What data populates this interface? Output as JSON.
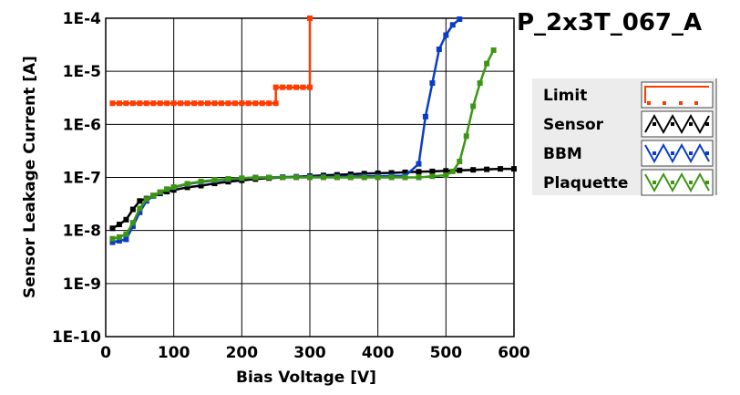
{
  "chart_data": {
    "type": "line",
    "title": "P_2x3T_067_A",
    "xlabel": "Bias Voltage [V]",
    "ylabel": "Sensor Leakage Current [A]",
    "xlim": [
      0,
      600
    ],
    "ylim": [
      1e-10,
      0.0001
    ],
    "yscale": "log",
    "grid": true,
    "legend_position": "right",
    "x_ticks": [
      0,
      100,
      200,
      300,
      400,
      500,
      600
    ],
    "x_tick_labels": [
      "0",
      "100",
      "200",
      "300",
      "400",
      "500",
      "600"
    ],
    "y_ticks": [
      0.0001,
      1e-05,
      1e-06,
      1e-07,
      1e-08,
      1e-09,
      1e-10
    ],
    "y_tick_labels": [
      "1E-4",
      "1E-5",
      "1E-6",
      "1E-7",
      "1E-8",
      "1E-9",
      "1E-10"
    ],
    "series": [
      {
        "name": "Limit",
        "color": "#ff3c00",
        "x": [
          10,
          20,
          30,
          40,
          50,
          60,
          70,
          80,
          90,
          100,
          110,
          120,
          130,
          140,
          150,
          160,
          170,
          180,
          190,
          200,
          210,
          220,
          230,
          240,
          250,
          250,
          260,
          270,
          280,
          290,
          300,
          300
        ],
        "y": [
          2.5e-06,
          2.5e-06,
          2.5e-06,
          2.5e-06,
          2.5e-06,
          2.5e-06,
          2.5e-06,
          2.5e-06,
          2.5e-06,
          2.5e-06,
          2.5e-06,
          2.5e-06,
          2.5e-06,
          2.5e-06,
          2.5e-06,
          2.5e-06,
          2.5e-06,
          2.5e-06,
          2.5e-06,
          2.5e-06,
          2.5e-06,
          2.5e-06,
          2.5e-06,
          2.5e-06,
          2.5e-06,
          5e-06,
          5e-06,
          5e-06,
          5e-06,
          5e-06,
          5e-06,
          0.0001
        ]
      },
      {
        "name": "Sensor",
        "color": "#000000",
        "x": [
          10,
          20,
          30,
          40,
          50,
          60,
          70,
          80,
          90,
          100,
          120,
          140,
          160,
          180,
          200,
          220,
          240,
          260,
          280,
          300,
          320,
          340,
          360,
          380,
          400,
          420,
          440,
          460,
          480,
          500,
          520,
          540,
          560,
          580,
          600
        ],
        "y": [
          1.1e-08,
          1.3e-08,
          1.6e-08,
          2.5e-08,
          3.6e-08,
          4e-08,
          4.5e-08,
          5e-08,
          5.4e-08,
          5.8e-08,
          6.5e-08,
          7e-08,
          7.7e-08,
          8.3e-08,
          8.8e-08,
          9.3e-08,
          9.7e-08,
          1e-07,
          1.03e-07,
          1.06e-07,
          1.09e-07,
          1.12e-07,
          1.15e-07,
          1.18e-07,
          1.2e-07,
          1.22e-07,
          1.25e-07,
          1.28e-07,
          1.3e-07,
          1.33e-07,
          1.36e-07,
          1.39e-07,
          1.42e-07,
          1.45e-07,
          1.45e-07
        ]
      },
      {
        "name": "BBM",
        "color": "#0a3cc8",
        "x": [
          10,
          20,
          30,
          40,
          50,
          60,
          70,
          80,
          90,
          100,
          120,
          140,
          160,
          180,
          200,
          220,
          240,
          260,
          280,
          300,
          320,
          340,
          360,
          380,
          400,
          420,
          440,
          460,
          470,
          480,
          490,
          500,
          510,
          520
        ],
        "y": [
          6e-09,
          6.4e-09,
          6.8e-09,
          1.2e-08,
          2.2e-08,
          3.6e-08,
          4.5e-08,
          5.2e-08,
          6e-08,
          6.5e-08,
          7.5e-08,
          8.2e-08,
          8.8e-08,
          9.2e-08,
          9.6e-08,
          1e-07,
          1e-07,
          1.02e-07,
          1.02e-07,
          1.03e-07,
          1.03e-07,
          1.03e-07,
          1.04e-07,
          1.05e-07,
          1.05e-07,
          1.06e-07,
          1.07e-07,
          1.8e-07,
          1.4e-06,
          6e-06,
          2.6e-05,
          4.8e-05,
          7.5e-05,
          9.6e-05
        ]
      },
      {
        "name": "Plaquette",
        "color": "#3c9614",
        "x": [
          10,
          20,
          30,
          40,
          50,
          60,
          70,
          80,
          90,
          100,
          120,
          140,
          160,
          180,
          200,
          220,
          240,
          260,
          280,
          300,
          320,
          340,
          360,
          380,
          400,
          420,
          440,
          460,
          480,
          500,
          510,
          520,
          530,
          540,
          550,
          560,
          570
        ],
        "y": [
          7e-09,
          7.5e-09,
          8.5e-09,
          1.4e-08,
          2.6e-08,
          3.9e-08,
          4.6e-08,
          5.3e-08,
          6e-08,
          6.6e-08,
          7.6e-08,
          8.4e-08,
          9e-08,
          9.4e-08,
          9.7e-08,
          9.9e-08,
          1e-07,
          1e-07,
          1e-07,
          1e-07,
          1e-07,
          1e-07,
          1e-07,
          1e-07,
          1e-07,
          1e-07,
          1e-07,
          1e-07,
          1.05e-07,
          1.1e-07,
          1.3e-07,
          2e-07,
          6e-07,
          2.2e-06,
          6e-06,
          1.4e-05,
          2.5e-05
        ]
      }
    ]
  }
}
